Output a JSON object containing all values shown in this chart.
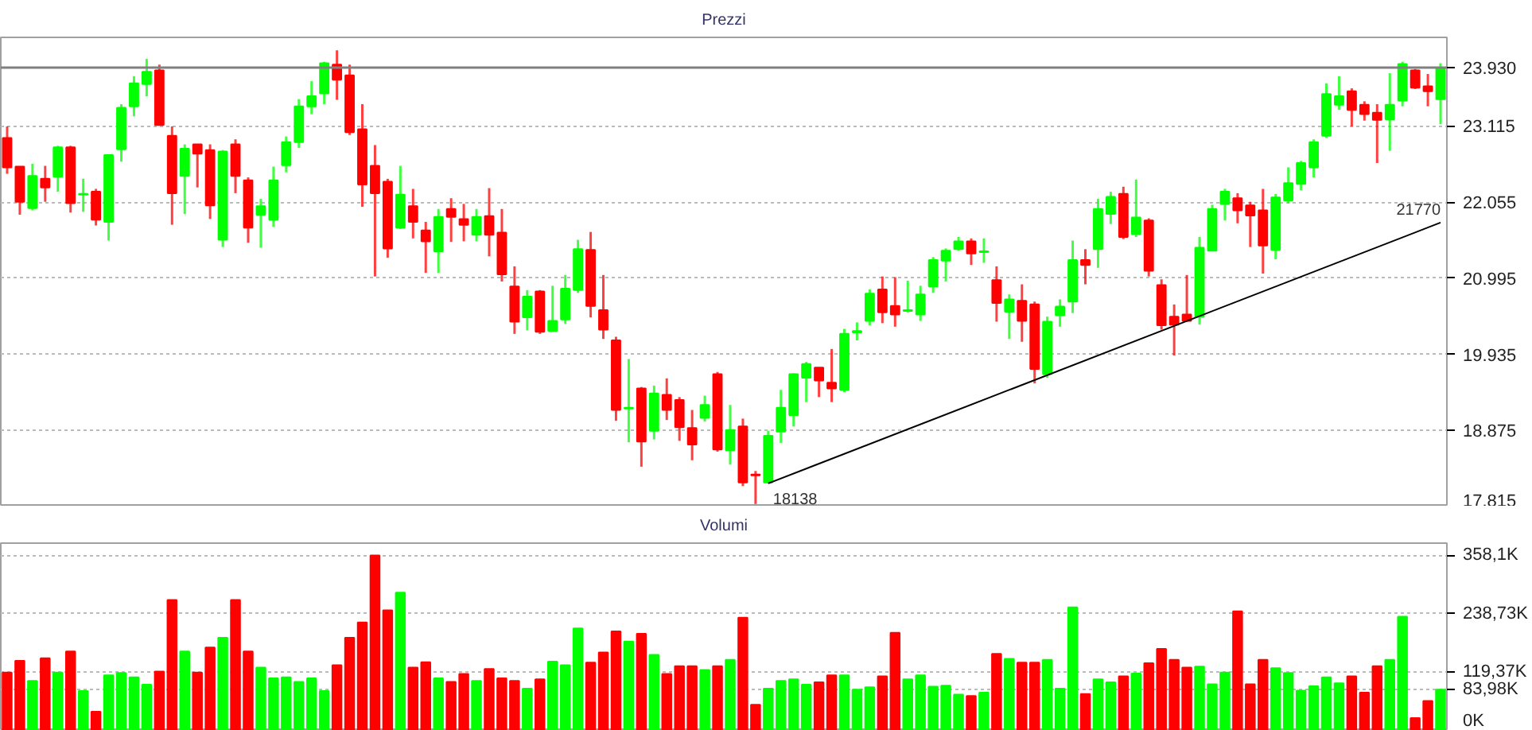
{
  "chart_data": [
    {
      "type": "candlestick",
      "title": "Prezzi",
      "categories": [
        null,
        null,
        null,
        null,
        null,
        null,
        null,
        null,
        null,
        null,
        null,
        null,
        null,
        null,
        null,
        null,
        null,
        null,
        null,
        null,
        null,
        null,
        null,
        null,
        null,
        null,
        null,
        null,
        null,
        null,
        null,
        null,
        null,
        null,
        null,
        null,
        null,
        null,
        null,
        null,
        null,
        null,
        null,
        null,
        null,
        null,
        null,
        null,
        null,
        null,
        null,
        null,
        null,
        null,
        null,
        null,
        null,
        null,
        null,
        null,
        null,
        null,
        null,
        null,
        null,
        null,
        null,
        null,
        null,
        null,
        null,
        null,
        null,
        null,
        null,
        null,
        null,
        null,
        null,
        null,
        null,
        null,
        null,
        null,
        null,
        null,
        null,
        null,
        null,
        null,
        null,
        null,
        null,
        null,
        null,
        null,
        null,
        null,
        null,
        null,
        null,
        null,
        null,
        null,
        null,
        null,
        null,
        null,
        null,
        null,
        null,
        null,
        null,
        null
      ],
      "ohlc": [
        [
          22950,
          23110,
          22450,
          22540
        ],
        [
          22550,
          22550,
          21880,
          22060
        ],
        [
          21970,
          22590,
          21940,
          22420
        ],
        [
          22380,
          22560,
          22060,
          22260
        ],
        [
          22410,
          22840,
          22200,
          22820
        ],
        [
          22820,
          22840,
          21910,
          22040
        ],
        [
          22160,
          22380,
          21920,
          22170
        ],
        [
          22200,
          22240,
          21730,
          21810
        ],
        [
          21780,
          22720,
          21520,
          22710
        ],
        [
          22790,
          23420,
          22620,
          23370
        ],
        [
          23390,
          23810,
          23250,
          23710
        ],
        [
          23700,
          24050,
          23530,
          23870
        ],
        [
          23890,
          23970,
          23130,
          23130
        ],
        [
          22980,
          23110,
          21740,
          22180
        ],
        [
          22420,
          22860,
          21890,
          22800
        ],
        [
          22860,
          22860,
          22260,
          22730
        ],
        [
          22780,
          22860,
          21820,
          22010
        ],
        [
          21530,
          22780,
          21430,
          22760
        ],
        [
          22860,
          22930,
          22180,
          22420
        ],
        [
          22360,
          22400,
          21490,
          21700
        ],
        [
          21880,
          22100,
          21420,
          22000
        ],
        [
          21810,
          22550,
          21710,
          22360
        ],
        [
          22570,
          22970,
          22470,
          22890
        ],
        [
          22890,
          23490,
          22810,
          23390
        ],
        [
          23390,
          23740,
          23280,
          23530
        ],
        [
          23570,
          24010,
          23420,
          23990
        ],
        [
          23970,
          24170,
          23480,
          23760
        ],
        [
          23820,
          23970,
          22990,
          23030
        ],
        [
          23070,
          23420,
          21990,
          22300
        ],
        [
          22560,
          22850,
          21020,
          22180
        ],
        [
          22340,
          22380,
          21280,
          21410
        ],
        [
          21700,
          22560,
          21680,
          22160
        ],
        [
          22000,
          22240,
          21550,
          21780
        ],
        [
          21660,
          21780,
          21070,
          21510
        ],
        [
          21370,
          21960,
          21070,
          21850
        ],
        [
          21960,
          22110,
          21500,
          21850
        ],
        [
          21820,
          22030,
          21510,
          21740
        ],
        [
          21600,
          21960,
          21510,
          21850
        ],
        [
          21860,
          22250,
          21300,
          21600
        ],
        [
          21630,
          21960,
          20950,
          21050
        ],
        [
          20880,
          21160,
          20220,
          20390
        ],
        [
          20450,
          20830,
          20270,
          20740
        ],
        [
          20810,
          20830,
          20220,
          20250
        ],
        [
          20260,
          20890,
          20250,
          20400
        ],
        [
          20420,
          21040,
          20360,
          20850
        ],
        [
          20830,
          21530,
          20790,
          21400
        ],
        [
          21390,
          21640,
          20450,
          20610
        ],
        [
          20550,
          21040,
          20150,
          20280
        ],
        [
          20130,
          20180,
          19010,
          19160
        ],
        [
          19180,
          19870,
          18710,
          19190
        ],
        [
          19460,
          19480,
          18370,
          18720
        ],
        [
          18870,
          19500,
          18750,
          19390
        ],
        [
          19370,
          19600,
          19020,
          19160
        ],
        [
          19300,
          19340,
          18730,
          18920
        ],
        [
          18910,
          19160,
          18460,
          18680
        ],
        [
          19050,
          19360,
          19000,
          19230
        ],
        [
          19660,
          19690,
          18580,
          18610
        ],
        [
          18600,
          19230,
          18400,
          18880
        ],
        [
          18930,
          19040,
          18100,
          18150
        ],
        [
          18260,
          18310,
          17850,
          18250
        ],
        [
          18150,
          18870,
          18138,
          18800
        ],
        [
          18860,
          19440,
          18700,
          19190
        ],
        [
          19090,
          19670,
          18930,
          19660
        ],
        [
          19610,
          19830,
          19270,
          19800
        ],
        [
          19750,
          19750,
          19340,
          19570
        ],
        [
          19540,
          20010,
          19270,
          19460
        ],
        [
          19440,
          20290,
          19410,
          20220
        ],
        [
          20240,
          20380,
          20130,
          20260
        ],
        [
          20400,
          20840,
          20340,
          20780
        ],
        [
          20840,
          21020,
          20370,
          20520
        ],
        [
          20610,
          21010,
          20320,
          20490
        ],
        [
          20540,
          20960,
          20520,
          20550
        ],
        [
          20490,
          20890,
          20400,
          20770
        ],
        [
          20880,
          21290,
          20790,
          21250
        ],
        [
          21240,
          21410,
          20950,
          21380
        ],
        [
          21400,
          21570,
          21380,
          21510
        ],
        [
          21510,
          21550,
          21180,
          21340
        ],
        [
          21360,
          21550,
          21210,
          21370
        ],
        [
          20970,
          21160,
          20390,
          20650
        ],
        [
          20530,
          20770,
          20150,
          20700
        ],
        [
          20680,
          20910,
          20110,
          20400
        ],
        [
          20630,
          20670,
          19530,
          19730
        ],
        [
          19660,
          20460,
          19610,
          20390
        ],
        [
          20480,
          20700,
          20320,
          20600
        ],
        [
          20670,
          21520,
          20510,
          21250
        ],
        [
          21250,
          21400,
          20910,
          21180
        ],
        [
          21400,
          22100,
          21140,
          21960
        ],
        [
          21890,
          22200,
          21750,
          22130
        ],
        [
          22170,
          22270,
          21540,
          21570
        ],
        [
          21610,
          22370,
          21570,
          21840
        ],
        [
          21800,
          21830,
          21020,
          21100
        ],
        [
          20900,
          20980,
          20280,
          20340
        ],
        [
          20460,
          20630,
          19920,
          20350
        ],
        [
          20490,
          21040,
          20390,
          20400
        ],
        [
          20460,
          21570,
          20350,
          21420
        ],
        [
          21380,
          22020,
          21370,
          21960
        ],
        [
          22030,
          22240,
          21800,
          22200
        ],
        [
          22110,
          22180,
          21760,
          21940
        ],
        [
          22010,
          22060,
          21430,
          21870
        ],
        [
          21940,
          22240,
          21060,
          21450
        ],
        [
          21390,
          22170,
          21260,
          22120
        ],
        [
          22080,
          22540,
          22040,
          22320
        ],
        [
          22310,
          22630,
          22220,
          22600
        ],
        [
          22540,
          22930,
          22400,
          22890
        ],
        [
          22980,
          23710,
          22950,
          23560
        ],
        [
          23410,
          23810,
          23340,
          23530
        ],
        [
          23600,
          23640,
          23110,
          23340
        ],
        [
          23410,
          23460,
          23190,
          23280
        ],
        [
          23300,
          23420,
          22600,
          23200
        ],
        [
          23210,
          23850,
          22770,
          23410
        ],
        [
          23470,
          24010,
          23390,
          23980
        ],
        [
          23890,
          23910,
          23630,
          23650
        ],
        [
          23670,
          23840,
          23390,
          23600
        ],
        [
          23490,
          23990,
          23140,
          23930
        ]
      ],
      "colors": [
        "#ff0000",
        "#ff0000",
        "#00ff00",
        "#ff0000",
        "#00ff00",
        "#ff0000",
        "#00ff00",
        "#ff0000",
        "#00ff00",
        "#00ff00",
        "#00ff00",
        "#00ff00",
        "#ff0000",
        "#ff0000",
        "#00ff00",
        "#ff0000",
        "#ff0000",
        "#00ff00",
        "#ff0000",
        "#ff0000",
        "#00ff00",
        "#00ff00",
        "#00ff00",
        "#00ff00",
        "#00ff00",
        "#00ff00",
        "#ff0000",
        "#ff0000",
        "#ff0000",
        "#ff0000",
        "#ff0000",
        "#00ff00",
        "#ff0000",
        "#ff0000",
        "#00ff00",
        "#ff0000",
        "#ff0000",
        "#00ff00",
        "#ff0000",
        "#ff0000",
        "#ff0000",
        "#00ff00",
        "#ff0000",
        "#00ff00",
        "#00ff00",
        "#00ff00",
        "#ff0000",
        "#ff0000",
        "#ff0000",
        "#00ff00",
        "#ff0000",
        "#00ff00",
        "#ff0000",
        "#ff0000",
        "#ff0000",
        "#00ff00",
        "#ff0000",
        "#00ff00",
        "#ff0000",
        "#ff0000",
        "#00ff00",
        "#00ff00",
        "#00ff00",
        "#00ff00",
        "#ff0000",
        "#ff0000",
        "#00ff00",
        "#00ff00",
        "#00ff00",
        "#ff0000",
        "#ff0000",
        "#00ff00",
        "#00ff00",
        "#00ff00",
        "#00ff00",
        "#00ff00",
        "#ff0000",
        "#00ff00",
        "#ff0000",
        "#00ff00",
        "#ff0000",
        "#ff0000",
        "#00ff00",
        "#00ff00",
        "#00ff00",
        "#ff0000",
        "#00ff00",
        "#00ff00",
        "#ff0000",
        "#00ff00",
        "#ff0000",
        "#ff0000",
        "#ff0000",
        "#ff0000",
        "#00ff00",
        "#00ff00",
        "#00ff00",
        "#ff0000",
        "#ff0000",
        "#ff0000",
        "#00ff00",
        "#00ff00",
        "#00ff00",
        "#00ff00",
        "#00ff00",
        "#00ff00",
        "#ff0000",
        "#ff0000",
        "#ff0000",
        "#00ff00",
        "#00ff00",
        "#ff0000",
        "#ff0000",
        "#00ff00"
      ],
      "series": [
        {
          "type": "line",
          "color": "#000000",
          "values": [
            null,
            null,
            null,
            null,
            null,
            null,
            null,
            null,
            null,
            null,
            null,
            null,
            null,
            null,
            null,
            null,
            null,
            null,
            null,
            null,
            null,
            null,
            null,
            null,
            null,
            null,
            null,
            null,
            null,
            null,
            null,
            null,
            null,
            null,
            null,
            null,
            null,
            null,
            null,
            null,
            null,
            null,
            null,
            null,
            null,
            null,
            null,
            null,
            null,
            null,
            null,
            null,
            null,
            null,
            null,
            null,
            null,
            null,
            null,
            null,
            18138,
            null,
            null,
            null,
            null,
            null,
            null,
            null,
            null,
            null,
            null,
            null,
            null,
            null,
            null,
            null,
            null,
            null,
            null,
            null,
            null,
            null,
            null,
            null,
            null,
            null,
            null,
            null,
            null,
            null,
            null,
            null,
            null,
            null,
            null,
            null,
            null,
            null,
            null,
            null,
            null,
            null,
            null,
            null,
            null,
            null,
            null,
            null,
            null,
            null,
            null,
            null,
            null,
            21770
          ]
        }
      ],
      "annotations": [
        "18138",
        "21770"
      ],
      "ref_lines": [
        {
          "axis": "y",
          "value": 23930,
          "color": "#808080"
        }
      ],
      "ylim": [
        17815,
        24350
      ],
      "yticks": [
        {
          "value": 17815,
          "label": "17.815"
        },
        {
          "value": 18875,
          "label": "18.875"
        },
        {
          "value": 19935,
          "label": "19.935"
        },
        {
          "value": 20995,
          "label": "20.995"
        },
        {
          "value": 22055,
          "label": "22.055"
        },
        {
          "value": 23115,
          "label": "23.115"
        },
        {
          "value": 23930,
          "label": "23.930"
        }
      ],
      "grid": "y"
    },
    {
      "type": "bar",
      "title": "Volumi",
      "categories": [
        null,
        null,
        null,
        null,
        null,
        null,
        null,
        null,
        null,
        null,
        null,
        null,
        null,
        null,
        null,
        null,
        null,
        null,
        null,
        null,
        null,
        null,
        null,
        null,
        null,
        null,
        null,
        null,
        null,
        null,
        null,
        null,
        null,
        null,
        null,
        null,
        null,
        null,
        null,
        null,
        null,
        null,
        null,
        null,
        null,
        null,
        null,
        null,
        null,
        null,
        null,
        null,
        null,
        null,
        null,
        null,
        null,
        null,
        null,
        null,
        null,
        null,
        null,
        null,
        null,
        null,
        null,
        null,
        null,
        null,
        null,
        null,
        null,
        null,
        null,
        null,
        null,
        null,
        null,
        null,
        null,
        null,
        null,
        null,
        null,
        null,
        null,
        null,
        null,
        null,
        null,
        null,
        null,
        null,
        null,
        null,
        null,
        null,
        null,
        null,
        null,
        null,
        null,
        null,
        null,
        null,
        null,
        null,
        null,
        null,
        null,
        null,
        null,
        null
      ],
      "values": [
        119,
        143,
        102,
        148,
        119,
        162,
        81,
        39,
        113,
        118,
        109,
        94,
        121,
        267,
        162,
        119,
        170,
        190,
        267,
        162,
        129,
        107,
        109,
        100,
        107,
        81,
        134,
        190,
        221,
        358,
        246,
        282,
        129,
        140,
        107,
        100,
        116,
        102,
        126,
        107,
        102,
        86,
        105,
        141,
        134,
        209,
        139,
        160,
        203,
        182,
        198,
        155,
        116,
        132,
        132,
        124,
        132,
        145,
        231,
        53,
        86,
        102,
        105,
        94,
        99,
        113,
        113,
        84,
        89,
        111,
        200,
        105,
        113,
        90,
        92,
        74,
        71,
        78,
        157,
        147,
        139,
        139,
        145,
        86,
        252,
        75,
        105,
        99,
        111,
        117,
        138,
        167,
        145,
        129,
        131,
        95,
        119,
        244,
        95,
        145,
        128,
        118,
        82,
        91,
        109,
        97,
        111,
        78,
        132,
        145,
        233,
        26,
        61,
        84
      ],
      "colors": [
        "#ff0000",
        "#ff0000",
        "#00ff00",
        "#ff0000",
        "#00ff00",
        "#ff0000",
        "#00ff00",
        "#ff0000",
        "#00ff00",
        "#00ff00",
        "#00ff00",
        "#00ff00",
        "#ff0000",
        "#ff0000",
        "#00ff00",
        "#ff0000",
        "#ff0000",
        "#00ff00",
        "#ff0000",
        "#ff0000",
        "#00ff00",
        "#00ff00",
        "#00ff00",
        "#00ff00",
        "#00ff00",
        "#00ff00",
        "#ff0000",
        "#ff0000",
        "#ff0000",
        "#ff0000",
        "#ff0000",
        "#00ff00",
        "#ff0000",
        "#ff0000",
        "#00ff00",
        "#ff0000",
        "#ff0000",
        "#00ff00",
        "#ff0000",
        "#ff0000",
        "#ff0000",
        "#00ff00",
        "#ff0000",
        "#00ff00",
        "#00ff00",
        "#00ff00",
        "#ff0000",
        "#ff0000",
        "#ff0000",
        "#00ff00",
        "#ff0000",
        "#00ff00",
        "#ff0000",
        "#ff0000",
        "#ff0000",
        "#00ff00",
        "#ff0000",
        "#00ff00",
        "#ff0000",
        "#ff0000",
        "#00ff00",
        "#00ff00",
        "#00ff00",
        "#00ff00",
        "#ff0000",
        "#ff0000",
        "#00ff00",
        "#00ff00",
        "#00ff00",
        "#ff0000",
        "#ff0000",
        "#00ff00",
        "#00ff00",
        "#00ff00",
        "#00ff00",
        "#00ff00",
        "#ff0000",
        "#00ff00",
        "#ff0000",
        "#00ff00",
        "#ff0000",
        "#ff0000",
        "#00ff00",
        "#00ff00",
        "#00ff00",
        "#ff0000",
        "#00ff00",
        "#00ff00",
        "#ff0000",
        "#00ff00",
        "#ff0000",
        "#ff0000",
        "#ff0000",
        "#ff0000",
        "#00ff00",
        "#00ff00",
        "#00ff00",
        "#ff0000",
        "#ff0000",
        "#ff0000",
        "#00ff00",
        "#00ff00",
        "#00ff00",
        "#00ff00",
        "#00ff00",
        "#00ff00",
        "#ff0000",
        "#ff0000",
        "#ff0000",
        "#00ff00",
        "#00ff00",
        "#ff0000",
        "#ff0000",
        "#00ff00"
      ],
      "ylim": [
        0,
        383
      ],
      "yticks": [
        {
          "value": 0,
          "label": "0K"
        },
        {
          "value": 83.98,
          "label": "83,98K"
        },
        {
          "value": 119.37,
          "label": "119,37K"
        },
        {
          "value": 238.73,
          "label": "238,73K"
        },
        {
          "value": 358.1,
          "label": "358,1K"
        }
      ],
      "grid": "y"
    }
  ]
}
